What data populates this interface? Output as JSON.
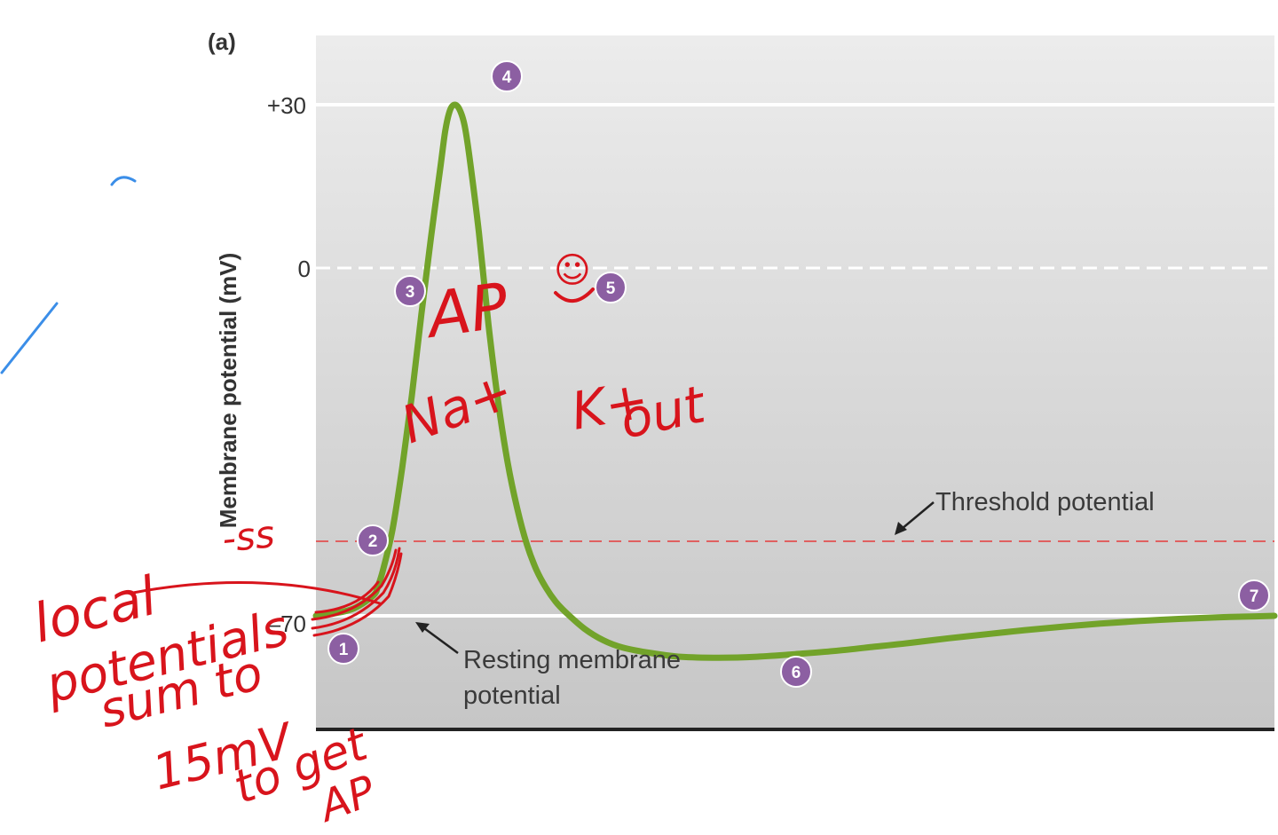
{
  "chart_data": {
    "type": "line",
    "panel_label": "(a)",
    "ylabel": "Membrane potential (mV)",
    "xlabel": "",
    "ylim": [
      -88,
      43
    ],
    "y_ticks": [
      {
        "value": 30,
        "label": "+30"
      },
      {
        "value": 0,
        "label": "0"
      },
      {
        "value": -70,
        "label": "–70"
      }
    ],
    "reference_lines": [
      {
        "value": 30,
        "style": "solid",
        "color": "#ffffff"
      },
      {
        "value": 0,
        "style": "dashed",
        "color": "#ffffff"
      },
      {
        "value": -55,
        "style": "dashed",
        "color": "#e06060"
      },
      {
        "value": -70,
        "style": "solid",
        "color": "#ffffff"
      }
    ],
    "series": [
      {
        "color": "#72a32a",
        "x": [
          0,
          2,
          4,
          6,
          6.5,
          7,
          8,
          9,
          10,
          11,
          12,
          13,
          13.5,
          14,
          14.5,
          15,
          15.5,
          16,
          17,
          18,
          19,
          20,
          21,
          22,
          23,
          24,
          25,
          26,
          28,
          30,
          32,
          35,
          38,
          42,
          46,
          50,
          54,
          58,
          62,
          66,
          70,
          74,
          78,
          82,
          86,
          90,
          94,
          98,
          100
        ],
        "y": [
          -70,
          -69.5,
          -68.5,
          -66,
          -64,
          -61,
          -53,
          -41,
          -27,
          -11,
          4,
          18,
          25,
          29,
          30,
          29,
          26,
          20,
          5,
          -13,
          -28,
          -40,
          -49,
          -56,
          -61,
          -64.5,
          -67.2,
          -69.2,
          -72.5,
          -74.8,
          -76.2,
          -77.3,
          -78,
          -78.2,
          -78,
          -77.5,
          -76.9,
          -76.1,
          -75.3,
          -74.4,
          -73.6,
          -72.8,
          -72.1,
          -71.5,
          -71,
          -70.6,
          -70.3,
          -70.1,
          -70
        ]
      }
    ],
    "annotations": [
      "Threshold potential",
      "Resting membrane potential"
    ],
    "stage_markers": [
      "1",
      "2",
      "3",
      "4",
      "5",
      "6",
      "7"
    ],
    "colors": {
      "background_top": "#ececec",
      "background_bottom": "#c6c6c6",
      "curve": "#72a32a",
      "marker": "#8c5fa2",
      "threshold": "#e06060",
      "ink": "#d8141c",
      "pen_blue": "#3b8ee8"
    }
  },
  "handwriting": {
    "ap": "AP",
    "smile": "☺",
    "na": "Na+",
    "k": "K+",
    "out": "out",
    "ss": "-ss",
    "local": "local",
    "potentials": "potentials",
    "sum_to": "sum to",
    "fifteen_mv": "15mV",
    "to_get": "to get",
    "ap2": "AP"
  }
}
